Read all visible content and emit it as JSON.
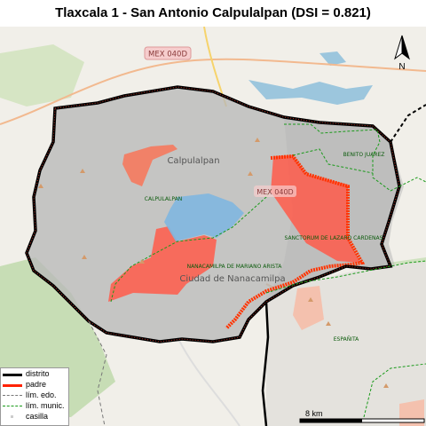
{
  "title": "Tlaxcala 1 - San Antonio Calpulalpan (DSI = 0.821)",
  "labels": {
    "road_badge_top": "MEX 040D",
    "road_badge_mid": "MEX 040D",
    "town_calpulalpan": "Calpulalpan",
    "town_ciudad_nanacamilpa": "Ciudad de Nanacamilpa",
    "muni_calpulalpan": "CALPULALPAN",
    "muni_benito_juarez": "BENITO JUAREZ",
    "muni_sanctorum": "SANCTORUM DE LAZARO CARDENAS",
    "muni_nanacamilpa": "NANACAMILPA DE MARIANO ARISTA",
    "muni_espanita": "ESPAÑITA"
  },
  "legend": {
    "items": [
      {
        "label": "distrito",
        "color": "#000000",
        "style": "solid-thick"
      },
      {
        "label": "padre",
        "color": "#ff2200",
        "style": "solid-thick"
      },
      {
        "label": "lím. edo.",
        "color": "#777777",
        "style": "dashed"
      },
      {
        "label": "lím. munic.",
        "color": "#1a9a1a",
        "style": "dashed"
      },
      {
        "label": "casilla",
        "color": "#cccccc",
        "style": "point"
      }
    ]
  },
  "north_label": "N",
  "scale_label": "8 km",
  "colors": {
    "district_fill": "#b3b3b3",
    "parent_fill": "#ff5a4a",
    "water": "#9cc6dd",
    "highlight_blue": "#7fb6e0",
    "green_area": "#c7ddb5"
  }
}
